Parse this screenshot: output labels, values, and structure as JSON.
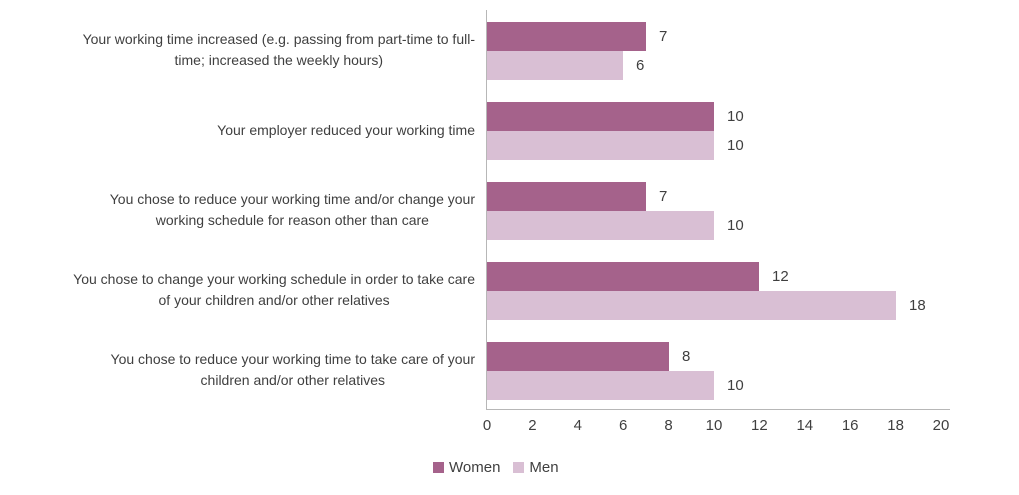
{
  "chart_data": {
    "type": "bar",
    "orientation": "horizontal",
    "title": "",
    "categories": [
      "Your working time increased (e.g. passing from part-time to full-time; increased the weekly hours)",
      "Your employer reduced your working time",
      "You chose to reduce your working time and/or change your working schedule for reason other than care",
      "You chose to change your working schedule in order to take care of your children and/or other relatives",
      "You chose to reduce your working time to take care of your children and/or other relatives"
    ],
    "category_lines": [
      [
        "Your working time increased (e.g. passing from part-time to full-",
        "time; increased the weekly hours)"
      ],
      [
        "Your employer reduced your working time"
      ],
      [
        "You chose to reduce your working time and/or change your",
        "working schedule for reason other than care"
      ],
      [
        "You chose to change your working schedule in order to take care",
        "of your children and/or other relatives"
      ],
      [
        "You chose to reduce your working time to take care of your",
        "children and/or other relatives"
      ]
    ],
    "series": [
      {
        "name": "Women",
        "color": "#a5628b",
        "values": [
          7,
          10,
          7,
          12,
          8
        ]
      },
      {
        "name": "Men",
        "color": "#d9bfd4",
        "values": [
          6,
          10,
          10,
          18,
          10
        ]
      }
    ],
    "data_labels": true,
    "xlim": [
      0,
      20
    ],
    "x_ticks": [
      0,
      2,
      4,
      6,
      8,
      10,
      12,
      14,
      16,
      18,
      20
    ],
    "grid": false,
    "legend_position": "bottom",
    "axis_color": "#b7b7b7",
    "text_color": "#3f3f3f",
    "background_color": "#ffffff"
  }
}
